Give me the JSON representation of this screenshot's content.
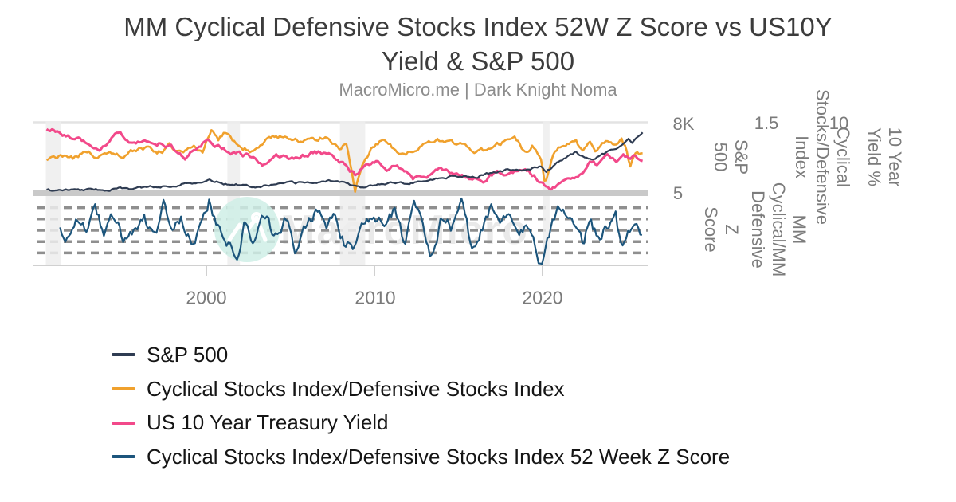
{
  "header": {
    "title": "MM Cyclical Defensive Stocks Index 52W Z Score vs US10Y\nYield & S&P 500",
    "subtitle": "MacroMicro.me | Dark Knight Noma"
  },
  "watermark": {
    "text": "MacroMicro"
  },
  "legend": {
    "items": [
      {
        "label": "S&P 500",
        "color": "#2f3c52"
      },
      {
        "label": "Cyclical Stocks Index/Defensive Stocks Index",
        "color": "#f0a12d"
      },
      {
        "label": "US 10 Year Treasury Yield",
        "color": "#f2498a"
      },
      {
        "label": "Cyclical Stocks Index/Defensive Stocks Index 52 Week Z Score",
        "color": "#1c557c"
      }
    ]
  },
  "chart_data": {
    "type": "line",
    "x_axis": {
      "tick_labels": [
        "2000",
        "2010",
        "2020"
      ],
      "tick_years": [
        2000,
        2010,
        2020
      ],
      "range_years": [
        1990.45,
        2026.3
      ]
    },
    "y_axes": [
      {
        "title": "S&P 500",
        "title_lines": "S&P\n500",
        "ticks": [
          "8K",
          "5"
        ]
      },
      {
        "title": "Cyclical Stocks/Defensive Index",
        "title_lines": "Cyclical\nStocks/Defensive\nIndex",
        "ticks": [
          "1.5"
        ]
      },
      {
        "title": "10 Year Yield %",
        "title_lines": "10 Year\nYield %",
        "ticks": [
          "10"
        ]
      },
      {
        "title": "Z Score",
        "title_lines": "Z\nScore",
        "ticks": []
      },
      {
        "title": "MM Cyclical/MM Defensive",
        "title_lines": "MM\nCyclical/MM\nDefensive",
        "ticks": []
      }
    ],
    "z_panel": {
      "gridlines": [
        2,
        1,
        0,
        -1,
        -2
      ]
    },
    "recession_bands_years": [
      [
        1990.45,
        1991.35
      ],
      [
        2001.25,
        2002.0
      ],
      [
        2007.95,
        2009.45
      ],
      [
        2020.0,
        2020.42
      ]
    ],
    "series": [
      {
        "id": "ratio",
        "name": "Cyclical Stocks Index/Defensive Stocks Index",
        "color": "#f0a12d",
        "axis": "ratio",
        "points": [
          [
            1990.5,
            1.03
          ],
          [
            1991.3,
            1.11
          ],
          [
            1992.0,
            1.05
          ],
          [
            1992.8,
            1.13
          ],
          [
            1993.6,
            1.08
          ],
          [
            1994.4,
            1.14
          ],
          [
            1995.2,
            1.1
          ],
          [
            1996.2,
            1.19
          ],
          [
            1997.0,
            1.13
          ],
          [
            1997.8,
            1.21
          ],
          [
            1998.5,
            1.13
          ],
          [
            1999.2,
            1.19
          ],
          [
            1999.8,
            1.14
          ],
          [
            2000.35,
            1.47
          ],
          [
            2000.7,
            1.29
          ],
          [
            2001.2,
            1.39
          ],
          [
            2001.9,
            1.22
          ],
          [
            2002.6,
            1.15
          ],
          [
            2003.4,
            1.28
          ],
          [
            2004.4,
            1.35
          ],
          [
            2005.2,
            1.26
          ],
          [
            2005.9,
            1.32
          ],
          [
            2006.6,
            1.28
          ],
          [
            2007.2,
            1.35
          ],
          [
            2007.9,
            1.19
          ],
          [
            2008.35,
            1.27
          ],
          [
            2008.85,
            0.65
          ],
          [
            2009.3,
            1.02
          ],
          [
            2009.9,
            1.22
          ],
          [
            2010.6,
            1.32
          ],
          [
            2011.2,
            1.17
          ],
          [
            2011.9,
            1.12
          ],
          [
            2012.6,
            1.2
          ],
          [
            2013.4,
            1.27
          ],
          [
            2014.3,
            1.3
          ],
          [
            2015.2,
            1.21
          ],
          [
            2016.0,
            1.09
          ],
          [
            2016.9,
            1.2
          ],
          [
            2017.6,
            1.26
          ],
          [
            2018.3,
            1.35
          ],
          [
            2018.9,
            1.16
          ],
          [
            2019.4,
            1.23
          ],
          [
            2019.9,
            1.07
          ],
          [
            2020.15,
            0.74
          ],
          [
            2020.6,
            1.05
          ],
          [
            2021.1,
            1.2
          ],
          [
            2021.5,
            1.24
          ],
          [
            2022.0,
            1.27
          ],
          [
            2022.4,
            1.16
          ],
          [
            2022.8,
            1.23
          ],
          [
            2023.2,
            1.13
          ],
          [
            2023.8,
            1.29
          ],
          [
            2024.2,
            1.23
          ],
          [
            2024.7,
            1.29
          ],
          [
            2025.0,
            1.17
          ],
          [
            2025.2,
            0.9
          ],
          [
            2025.5,
            1.13
          ],
          [
            2026.0,
            1.11
          ]
        ]
      },
      {
        "id": "yield",
        "name": "US 10 Year Treasury Yield",
        "color": "#f2498a",
        "axis": "yield",
        "points": [
          [
            1990.5,
            8.05
          ],
          [
            1991.3,
            7.6
          ],
          [
            1992.2,
            6.9
          ],
          [
            1993.6,
            5.5
          ],
          [
            1994.8,
            7.7
          ],
          [
            1995.8,
            6.0
          ],
          [
            1996.6,
            6.6
          ],
          [
            1997.5,
            6.2
          ],
          [
            1998.8,
            4.5
          ],
          [
            2000.0,
            6.5
          ],
          [
            2000.8,
            5.9
          ],
          [
            2001.6,
            4.9
          ],
          [
            2002.4,
            4.7
          ],
          [
            2003.4,
            3.5
          ],
          [
            2004.2,
            4.6
          ],
          [
            2005.2,
            4.1
          ],
          [
            2006.5,
            5.1
          ],
          [
            2007.4,
            4.7
          ],
          [
            2008.2,
            3.5
          ],
          [
            2008.9,
            2.0
          ],
          [
            2009.5,
            3.4
          ],
          [
            2010.2,
            3.8
          ],
          [
            2010.8,
            2.7
          ],
          [
            2011.3,
            3.5
          ],
          [
            2012.3,
            1.7
          ],
          [
            2013.0,
            1.9
          ],
          [
            2013.9,
            2.9
          ],
          [
            2014.9,
            2.0
          ],
          [
            2016.5,
            1.5
          ],
          [
            2017.2,
            2.4
          ],
          [
            2017.8,
            2.2
          ],
          [
            2018.8,
            3.1
          ],
          [
            2019.6,
            1.8
          ],
          [
            2020.4,
            0.55
          ],
          [
            2021.1,
            1.1
          ],
          [
            2021.9,
            1.6
          ],
          [
            2022.5,
            3.0
          ],
          [
            2022.9,
            3.9
          ],
          [
            2023.3,
            3.4
          ],
          [
            2023.9,
            4.5
          ],
          [
            2024.4,
            4.0
          ],
          [
            2024.8,
            4.5
          ],
          [
            2025.2,
            4.2
          ],
          [
            2025.6,
            4.4
          ],
          [
            2026.0,
            3.7
          ]
        ]
      },
      {
        "id": "sp500",
        "name": "S&P 500",
        "color": "#2f3c52",
        "axis": "sp",
        "points": [
          [
            1990.5,
            340
          ],
          [
            1992,
            420
          ],
          [
            1993.5,
            450
          ],
          [
            1995,
            550
          ],
          [
            1996.5,
            720
          ],
          [
            1998,
            980
          ],
          [
            1999,
            1280
          ],
          [
            2000.3,
            1460
          ],
          [
            2001,
            1200
          ],
          [
            2001.8,
            1130
          ],
          [
            2002.7,
            840
          ],
          [
            2003.5,
            1000
          ],
          [
            2004.5,
            1130
          ],
          [
            2005.5,
            1230
          ],
          [
            2006.5,
            1330
          ],
          [
            2007.6,
            1530
          ],
          [
            2008.3,
            1300
          ],
          [
            2008.8,
            950
          ],
          [
            2009.2,
            750
          ],
          [
            2009.8,
            1060
          ],
          [
            2010.5,
            1120
          ],
          [
            2011.3,
            1320
          ],
          [
            2011.7,
            1190
          ],
          [
            2012.5,
            1400
          ],
          [
            2013.5,
            1680
          ],
          [
            2014.5,
            1960
          ],
          [
            2015.4,
            2090
          ],
          [
            2016.1,
            1990
          ],
          [
            2017.0,
            2380
          ],
          [
            2018.0,
            2750
          ],
          [
            2018.8,
            2620
          ],
          [
            2019.5,
            2950
          ],
          [
            2019.95,
            3250
          ],
          [
            2020.2,
            2400
          ],
          [
            2020.8,
            3450
          ],
          [
            2021.5,
            4250
          ],
          [
            2021.95,
            4700
          ],
          [
            2022.4,
            4350
          ],
          [
            2022.9,
            3850
          ],
          [
            2023.5,
            4450
          ],
          [
            2023.95,
            4850
          ],
          [
            2024.4,
            5300
          ],
          [
            2024.8,
            5900
          ],
          [
            2025.1,
            6440
          ],
          [
            2025.3,
            5850
          ],
          [
            2026.0,
            7150
          ]
        ]
      },
      {
        "id": "z",
        "name": "Cyclical Stocks Index/Defensive Stocks Index 52 Week Z Score",
        "color": "#1c557c",
        "axis": "z",
        "points": [
          [
            1991.3,
            0.2
          ],
          [
            1991.8,
            -0.9
          ],
          [
            1992.3,
            0.6
          ],
          [
            1992.9,
            -0.5
          ],
          [
            1993.4,
            1.6
          ],
          [
            1993.9,
            -0.4
          ],
          [
            1994.5,
            0.9
          ],
          [
            1995.1,
            -1.0
          ],
          [
            1995.7,
            0.4
          ],
          [
            1996.3,
            1.3
          ],
          [
            1996.9,
            -0.5
          ],
          [
            1997.5,
            2.2
          ],
          [
            1998.0,
            -0.6
          ],
          [
            1998.5,
            0.9
          ],
          [
            1999.1,
            -1.3
          ],
          [
            1999.7,
            0.4
          ],
          [
            2000.2,
            2.9
          ],
          [
            2000.7,
            0.2
          ],
          [
            2001.2,
            -0.8
          ],
          [
            2001.8,
            -2.4
          ],
          [
            2002.3,
            0.5
          ],
          [
            2002.9,
            -1.2
          ],
          [
            2003.5,
            1.0
          ],
          [
            2004.1,
            -0.6
          ],
          [
            2004.7,
            1.3
          ],
          [
            2005.3,
            -1.4
          ],
          [
            2005.9,
            0.5
          ],
          [
            2006.5,
            1.6
          ],
          [
            2007.1,
            0.1
          ],
          [
            2007.7,
            1.7
          ],
          [
            2008.2,
            -0.9
          ],
          [
            2008.8,
            -1.7
          ],
          [
            2009.4,
            1.1
          ],
          [
            2010.0,
            1.8
          ],
          [
            2010.6,
            0.2
          ],
          [
            2011.2,
            1.6
          ],
          [
            2011.8,
            -1.6
          ],
          [
            2012.4,
            2.1
          ],
          [
            2013.0,
            -0.6
          ],
          [
            2013.4,
            -2.3
          ],
          [
            2014.0,
            1.3
          ],
          [
            2014.6,
            0.4
          ],
          [
            2015.2,
            2.7
          ],
          [
            2015.8,
            -1.9
          ],
          [
            2016.4,
            0.3
          ],
          [
            2016.9,
            2.0
          ],
          [
            2017.5,
            1.1
          ],
          [
            2018.0,
            2.2
          ],
          [
            2018.5,
            -1.0
          ],
          [
            2019.0,
            0.7
          ],
          [
            2019.5,
            -1.1
          ],
          [
            2019.95,
            -2.9
          ],
          [
            2020.4,
            -0.5
          ],
          [
            2020.9,
            1.5
          ],
          [
            2021.4,
            1.9
          ],
          [
            2021.9,
            0.3
          ],
          [
            2022.4,
            -1.2
          ],
          [
            2022.9,
            1.2
          ],
          [
            2023.4,
            -1.5
          ],
          [
            2023.9,
            0.4
          ],
          [
            2024.3,
            2.4
          ],
          [
            2024.7,
            -2.0
          ],
          [
            2025.1,
            -0.3
          ],
          [
            2025.5,
            1.0
          ],
          [
            2026.0,
            -0.5
          ]
        ]
      }
    ]
  }
}
